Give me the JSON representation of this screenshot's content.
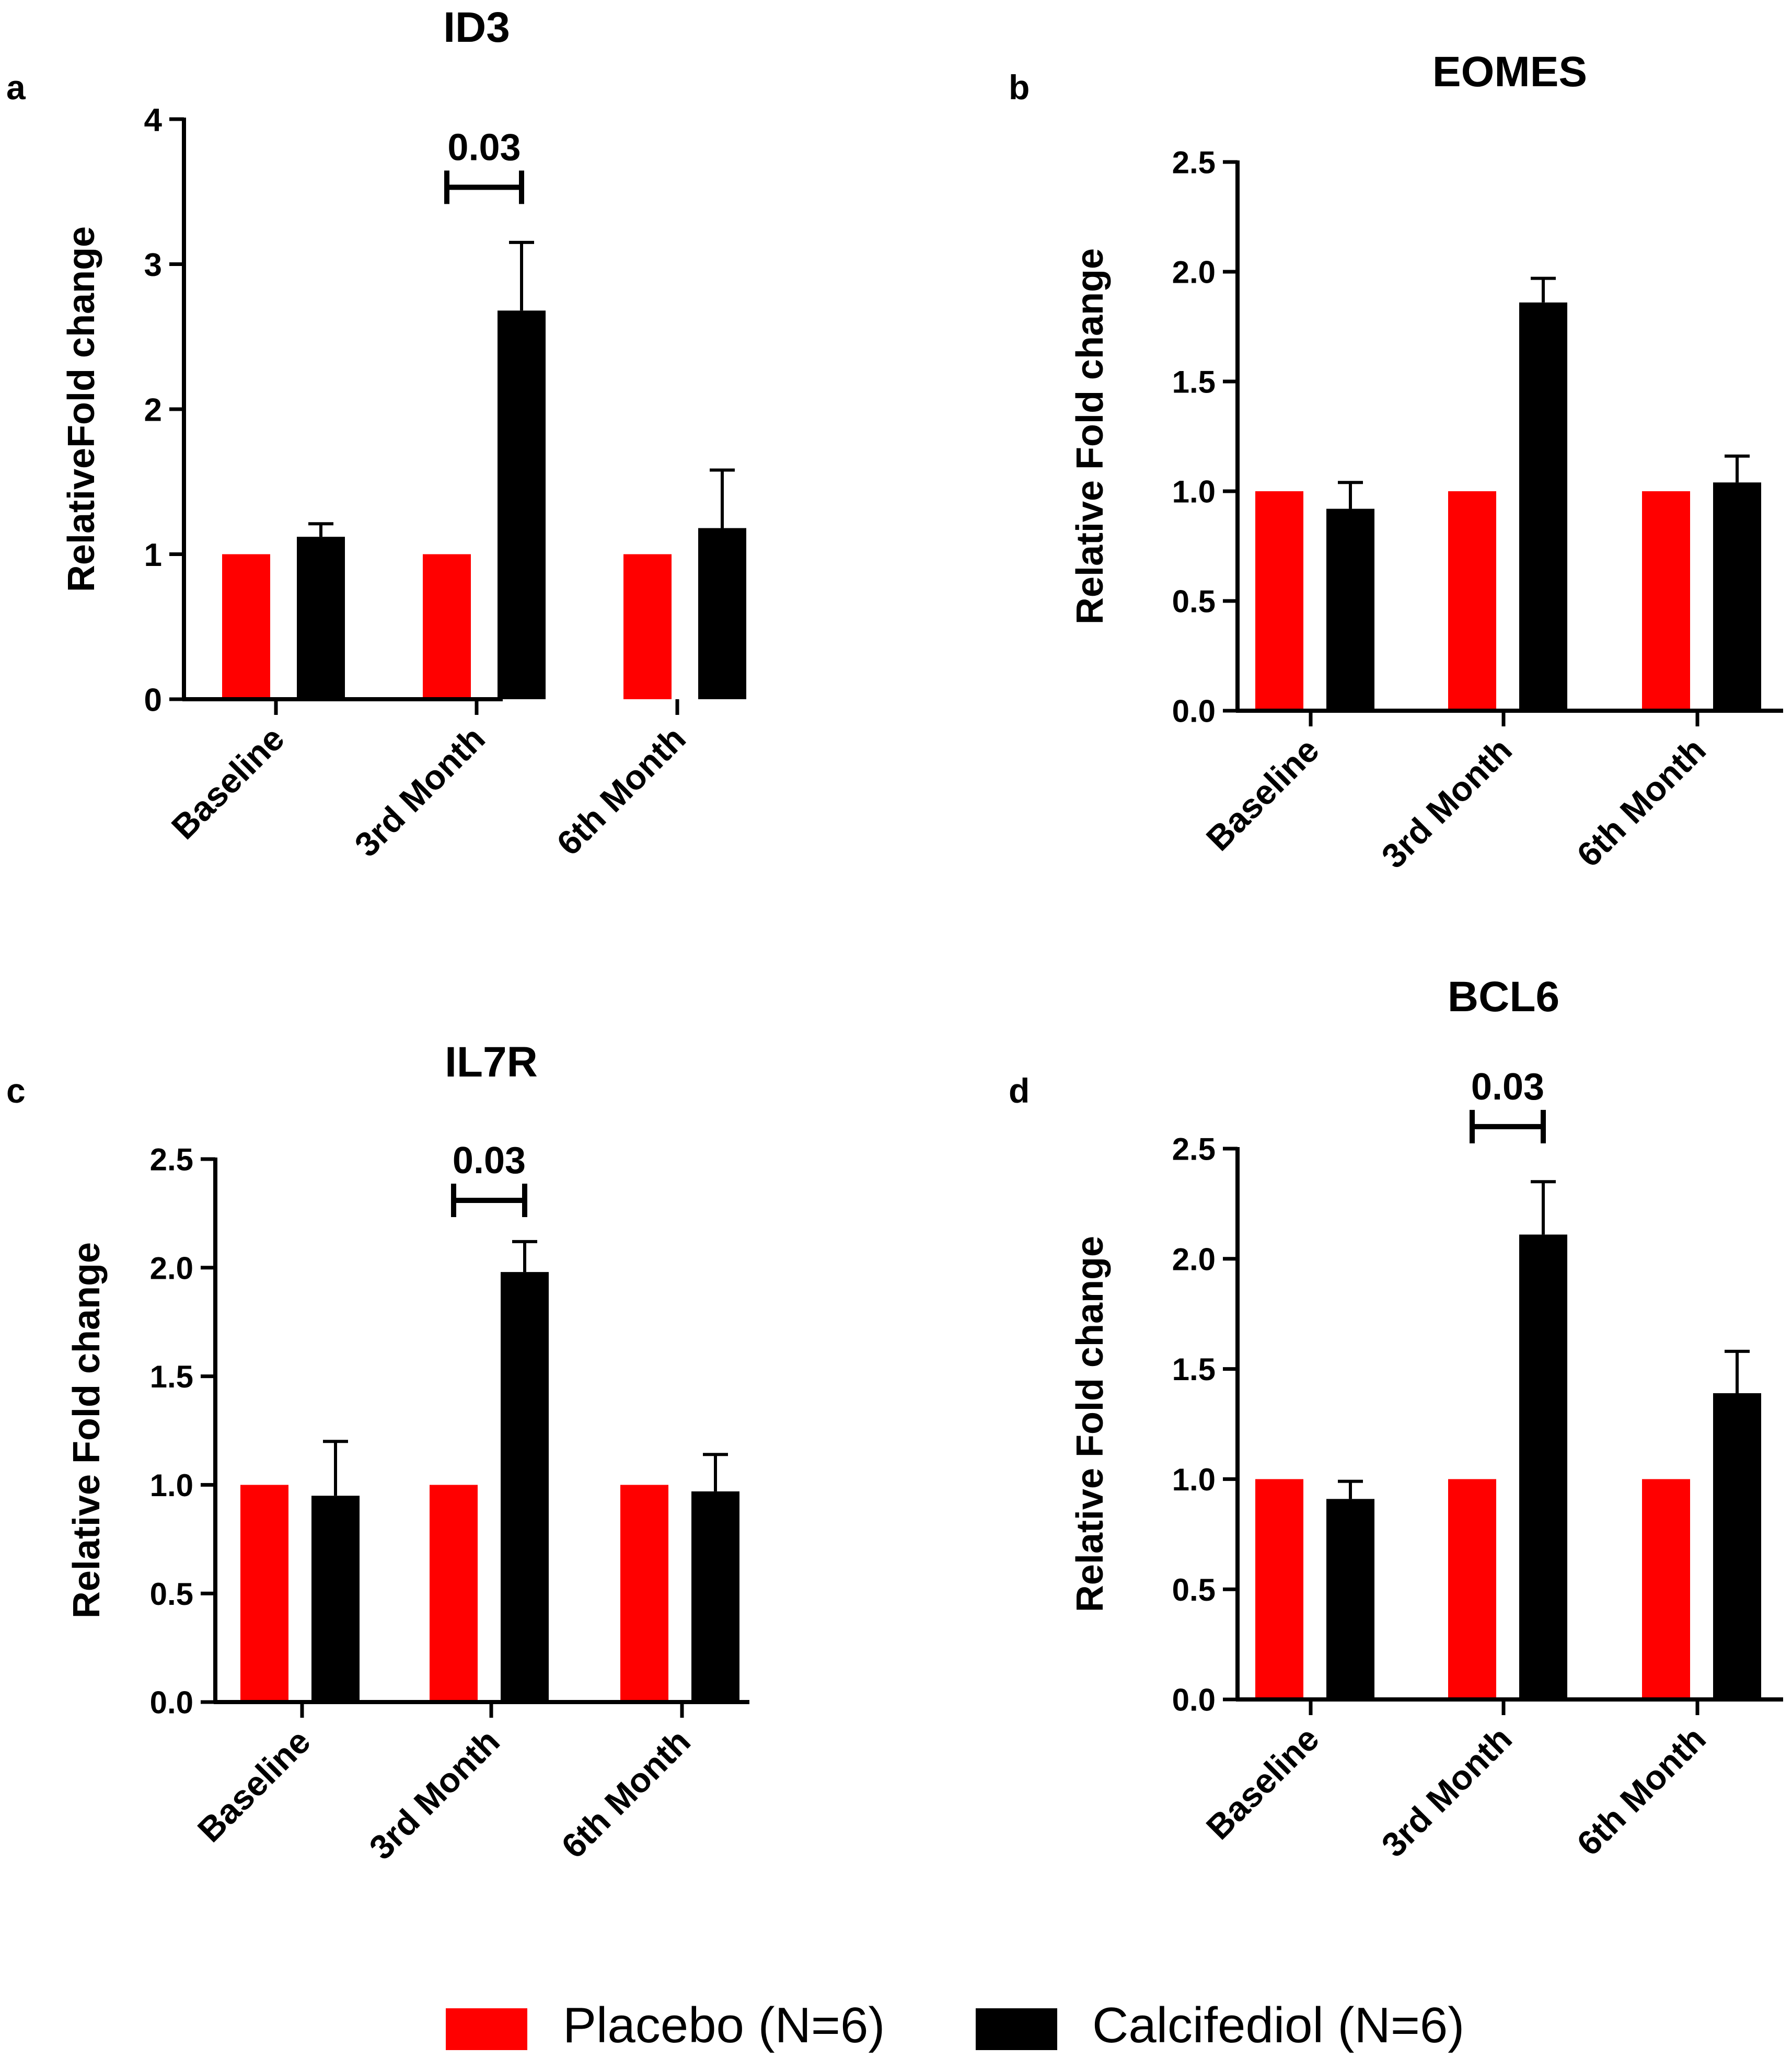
{
  "figure": {
    "colors": {
      "placebo": "#ff0000",
      "calcifediol": "#000000",
      "axis": "#000000"
    },
    "legend": [
      {
        "label": "Placebo (N=6)",
        "color": "#ff0000"
      },
      {
        "label": "Calcifediol (N=6)",
        "color": "#000000"
      }
    ]
  },
  "chart_data": [
    {
      "panel": "a",
      "type": "bar",
      "title": "ID3",
      "ylabel": "RelativeFold change",
      "xlabel": "",
      "categories": [
        "Baseline",
        "3rd Month",
        "6th Month"
      ],
      "ylim": [
        0,
        4
      ],
      "yticks": [
        0,
        1,
        2,
        3,
        4
      ],
      "ytick_labels": [
        "0",
        "1",
        "2",
        "3",
        "4"
      ],
      "series": [
        {
          "name": "Placebo (N=6)",
          "values": [
            1.0,
            1.0,
            1.0
          ],
          "errors": [
            0,
            0,
            0
          ]
        },
        {
          "name": "Calcifediol (N=6)",
          "values": [
            1.12,
            2.68,
            1.18
          ],
          "errors": [
            0.09,
            0.47,
            0.4
          ]
        }
      ],
      "annotations": [
        {
          "text": "0.03",
          "category": "3rd Month",
          "y": 3.53
        }
      ]
    },
    {
      "panel": "b",
      "type": "bar",
      "title": "EOMES",
      "ylabel": "Relative Fold change",
      "xlabel": "",
      "categories": [
        "Baseline",
        "3rd Month",
        "6th Month"
      ],
      "ylim": [
        0,
        2.5
      ],
      "yticks": [
        0,
        0.5,
        1,
        1.5,
        2,
        2.5
      ],
      "ytick_labels": [
        "0.0",
        "0.5",
        "1.0",
        "1.5",
        "2.0",
        "2.5"
      ],
      "series": [
        {
          "name": "Placebo (N=6)",
          "values": [
            1.0,
            1.0,
            1.0
          ],
          "errors": [
            0,
            0,
            0
          ]
        },
        {
          "name": "Calcifediol (N=6)",
          "values": [
            0.92,
            1.86,
            1.04
          ],
          "errors": [
            0.12,
            0.11,
            0.12
          ]
        }
      ],
      "annotations": []
    },
    {
      "panel": "c",
      "type": "bar",
      "title": "IL7R",
      "ylabel": "Relative Fold change",
      "xlabel": "",
      "categories": [
        "Baseline",
        "3rd Month",
        "6th Month"
      ],
      "ylim": [
        0,
        2.5
      ],
      "yticks": [
        0,
        0.5,
        1,
        1.5,
        2,
        2.5
      ],
      "ytick_labels": [
        "0.0",
        "0.5",
        "1.0",
        "1.5",
        "2.0",
        "2.5"
      ],
      "series": [
        {
          "name": "Placebo (N=6)",
          "values": [
            1.0,
            1.0,
            1.0
          ],
          "errors": [
            0,
            0,
            0
          ]
        },
        {
          "name": "Calcifediol (N=6)",
          "values": [
            0.95,
            1.98,
            0.97
          ],
          "errors": [
            0.25,
            0.14,
            0.17
          ]
        }
      ],
      "annotations": [
        {
          "text": "0.03",
          "category": "3rd Month",
          "y": 2.31
        }
      ]
    },
    {
      "panel": "d",
      "type": "bar",
      "title": "BCL6",
      "ylabel": "Relative Fold change",
      "xlabel": "",
      "categories": [
        "Baseline",
        "3rd Month",
        "6th Month"
      ],
      "ylim": [
        0,
        2.5
      ],
      "yticks": [
        0,
        0.5,
        1,
        1.5,
        2,
        2.5
      ],
      "ytick_labels": [
        "0.0",
        "0.5",
        "1.0",
        "1.5",
        "2.0",
        "2.5"
      ],
      "series": [
        {
          "name": "Placebo (N=6)",
          "values": [
            1.0,
            1.0,
            1.0
          ],
          "errors": [
            0,
            0,
            0
          ]
        },
        {
          "name": "Calcifediol (N=6)",
          "values": [
            0.91,
            2.11,
            1.39
          ],
          "errors": [
            0.08,
            0.24,
            0.19
          ]
        }
      ],
      "annotations": [
        {
          "text": "0.03",
          "category": "3rd Month",
          "y": 2.6
        }
      ]
    }
  ]
}
